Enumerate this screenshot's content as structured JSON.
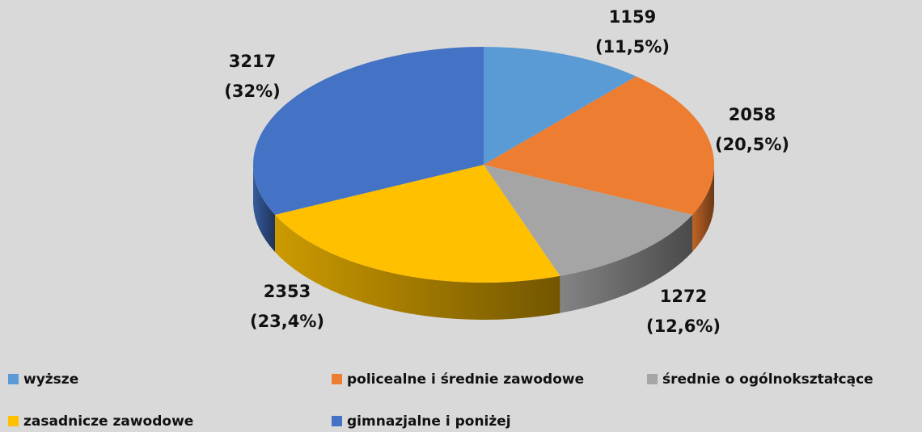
{
  "chart_data": {
    "type": "pie3d",
    "categories": [
      "wyższe",
      "policealne i średnie zawodowe",
      "średnie o ogólnokształcące",
      "zasadnicze zawodowe",
      "gimnazjalne i poniżej"
    ],
    "values": [
      1159,
      2058,
      1272,
      2353,
      3217
    ],
    "percentages": [
      11.5,
      20.5,
      12.6,
      23.4,
      32
    ],
    "percentage_labels": [
      "(11,5%)",
      "(20,5%)",
      "(12,6%)",
      "(23,4%)",
      "(32%)"
    ],
    "colors": [
      "#5b9bd5",
      "#ed7d31",
      "#a5a5a5",
      "#ffc000",
      "#4472c4"
    ],
    "legend": "bottom"
  }
}
